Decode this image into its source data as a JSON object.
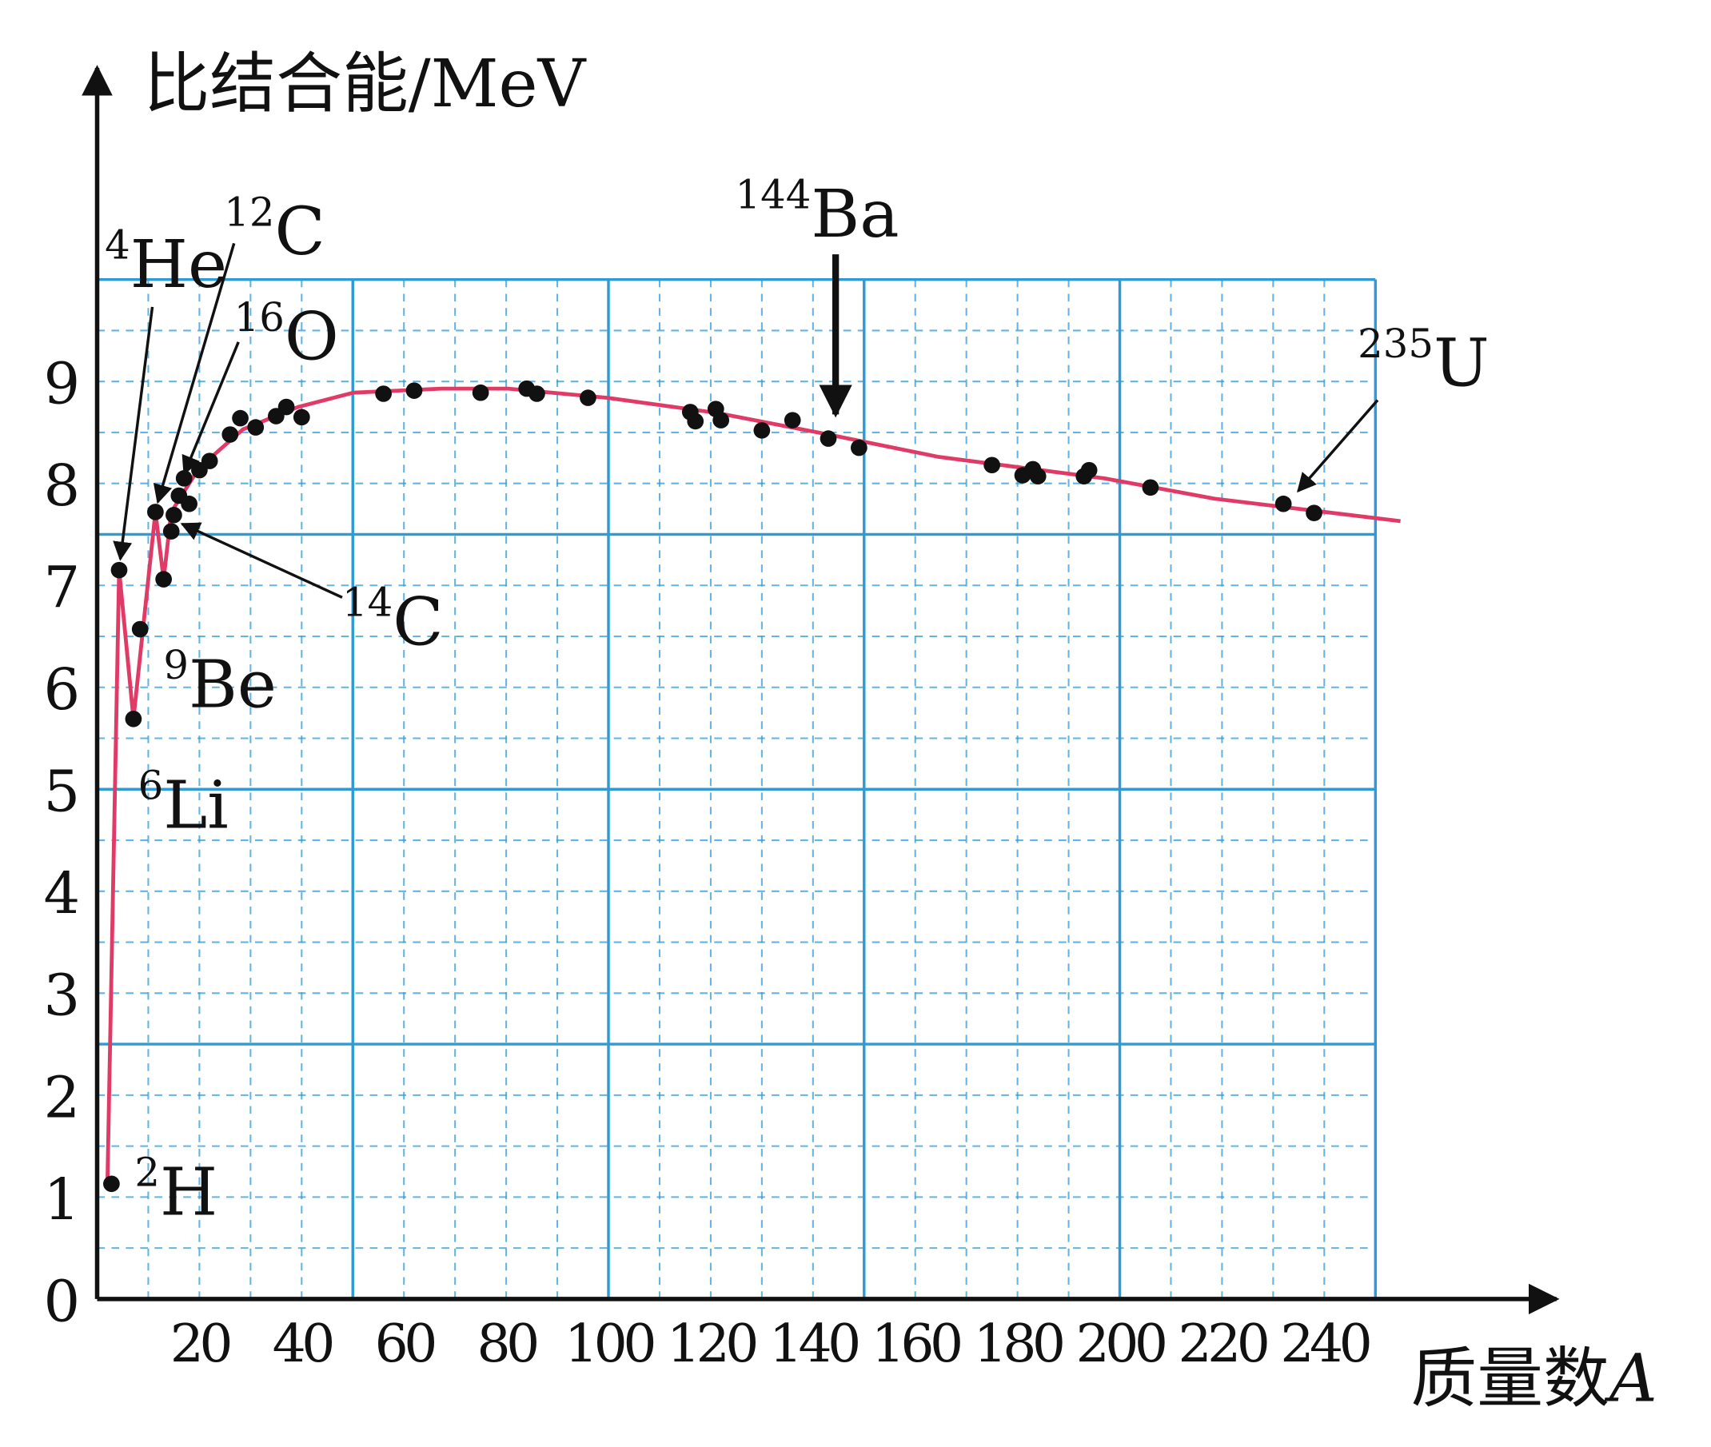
{
  "chart_data": {
    "type": "scatter",
    "ylabel": "比结合能/MeV",
    "xlabel": "质量数",
    "xlabel_var": "A",
    "xlim": [
      0,
      250
    ],
    "ylim": [
      0,
      10
    ],
    "xticks": [
      20,
      40,
      60,
      80,
      100,
      120,
      140,
      160,
      180,
      200,
      220,
      240
    ],
    "yticks": [
      0,
      1,
      2,
      3,
      4,
      5,
      6,
      7,
      8,
      9
    ],
    "grid": true,
    "grid_color": "#2f9bd6",
    "x_major_grid": [
      50,
      100,
      150,
      200,
      250
    ],
    "y_major_grid": [
      2.5,
      5,
      7.5,
      10
    ],
    "x_minor_grid": [
      10,
      20,
      30,
      40,
      60,
      70,
      80,
      90,
      110,
      120,
      130,
      140,
      160,
      170,
      180,
      190,
      210,
      220,
      230,
      240
    ],
    "y_minor_grid": [
      0.5,
      1,
      1.5,
      2,
      3,
      3.5,
      4,
      4.5,
      5.5,
      6,
      6.5,
      7,
      8,
      8.5,
      9,
      9.5
    ],
    "series": [
      {
        "kind": "line",
        "color": "#e03a66",
        "x": [
          2,
          4.3,
          7.1,
          11.4,
          13,
          14.5,
          19.9,
          28.5,
          39.3,
          50.1,
          67.4,
          80.3,
          99.8,
          121.4,
          143,
          164.6,
          197,
          218.6,
          254.9
        ],
        "values": [
          1.1,
          7.15,
          5.69,
          7.72,
          7.06,
          7.72,
          8.15,
          8.53,
          8.75,
          8.89,
          8.93,
          8.93,
          8.84,
          8.69,
          8.48,
          8.26,
          8.05,
          7.85,
          7.63
        ]
      },
      {
        "kind": "marker",
        "color": "#111111",
        "x": [
          2.8,
          4.3,
          7.1,
          8.4,
          11.4,
          13,
          14.5,
          15,
          16,
          17,
          18,
          20,
          22,
          26,
          28,
          31,
          35,
          37,
          40,
          56,
          62,
          75,
          84,
          86,
          96,
          116,
          117,
          121,
          122,
          130,
          136,
          143,
          149,
          175,
          181,
          183,
          184,
          193,
          194,
          206,
          232,
          238
        ],
        "values": [
          1.13,
          7.15,
          5.69,
          6.57,
          7.72,
          7.06,
          7.53,
          7.69,
          7.88,
          8.05,
          7.8,
          8.13,
          8.22,
          8.48,
          8.64,
          8.55,
          8.66,
          8.75,
          8.65,
          8.88,
          8.91,
          8.89,
          8.93,
          8.88,
          8.84,
          8.7,
          8.61,
          8.73,
          8.62,
          8.52,
          8.62,
          8.44,
          8.35,
          8.18,
          8.08,
          8.14,
          8.07,
          8.07,
          8.13,
          7.96,
          7.8,
          7.71
        ]
      }
    ],
    "annotations": [
      {
        "sup": "4",
        "text": "He"
      },
      {
        "sup": "12",
        "text": "C"
      },
      {
        "sup": "16",
        "text": "O"
      },
      {
        "sup": "14",
        "text": "C"
      },
      {
        "sup": "9",
        "text": "Be"
      },
      {
        "sup": "6",
        "text": "Li"
      },
      {
        "sup": "2",
        "text": "H"
      },
      {
        "sup": "144",
        "text": "Ba"
      },
      {
        "sup": "235",
        "text": "U"
      }
    ]
  }
}
